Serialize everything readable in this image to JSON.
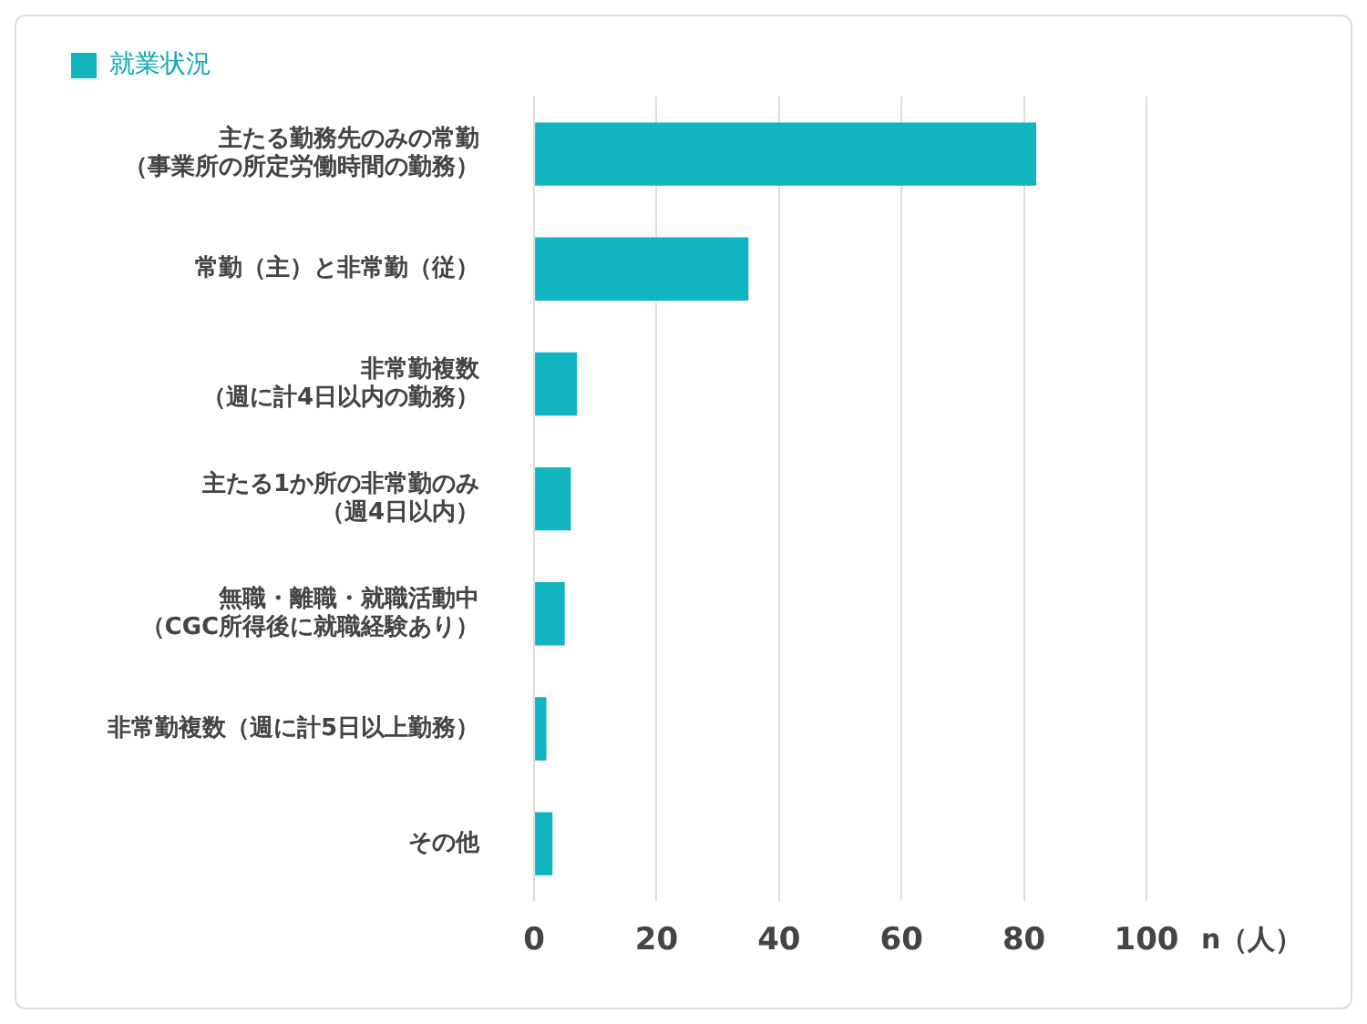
{
  "chart_data": {
    "type": "bar",
    "orientation": "horizontal",
    "xlabel": "n（人）",
    "categories": [
      "主たる勤務先のみの常勤（事業所の所定労働時間の勤務）",
      "常勤（主）と非常勤（従）",
      "非常勤複数（週に計4日以内の勤務）",
      "主たる1か所の非常勤のみ（週4日以内）",
      "無職・離職・就職活動中（CGC所得後に就職経験あり）",
      "非常勤複数（週に計5日以上勤務）",
      "その他"
    ],
    "series": [
      {
        "name": "就業状況",
        "color": "#10b5c0",
        "values": [
          82,
          35,
          7,
          6,
          5,
          2,
          3
        ]
      }
    ],
    "xlim": [
      0,
      100
    ],
    "xticks": [
      0,
      20,
      40,
      60,
      80,
      100
    ],
    "grid": "x",
    "legend": "top left"
  }
}
